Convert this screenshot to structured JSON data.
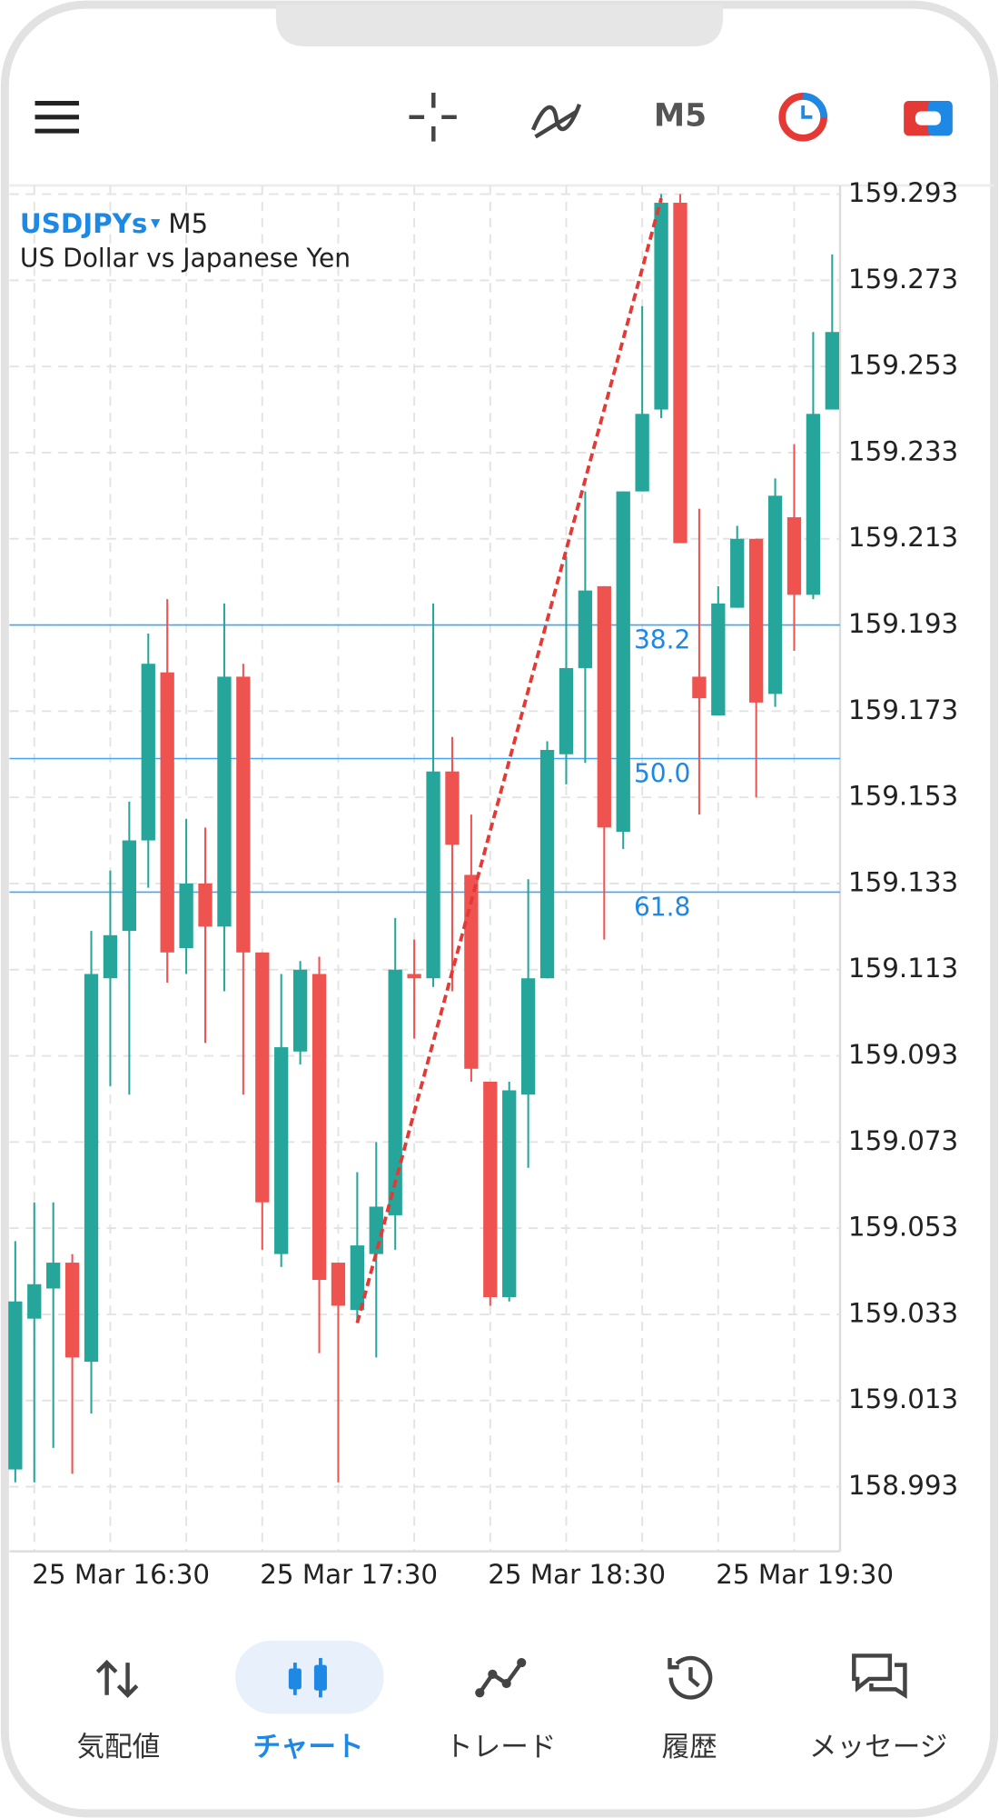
{
  "toolbar": {
    "timeframe": "M5"
  },
  "symbol": {
    "name": "USDJPYs",
    "timeframe": "M5",
    "description": "US Dollar vs Japanese Yen"
  },
  "chart_data": {
    "type": "candlestick",
    "categories": [
      null,
      "25 Mar 16:30",
      null,
      null,
      null,
      null,
      null,
      null,
      null,
      null,
      null,
      null,
      null,
      "25 Mar 17:30",
      null,
      null,
      null,
      null,
      null,
      null,
      null,
      null,
      null,
      null,
      null,
      "25 Mar 18:30",
      null,
      null,
      null,
      null,
      null,
      null,
      null,
      null,
      null,
      null,
      null,
      "25 Mar 19:30",
      null,
      null,
      null,
      null,
      null,
      null
    ],
    "open": [
      158.997,
      159.032,
      159.039,
      159.045,
      159.022,
      159.111,
      159.122,
      159.143,
      159.182,
      159.118,
      159.133,
      159.123,
      159.181,
      159.117,
      159.047,
      159.094,
      159.112,
      159.045,
      159.034,
      159.047,
      159.056,
      159.112,
      159.111,
      159.159,
      159.135,
      159.087,
      159.037,
      159.084,
      159.111,
      159.163,
      159.183,
      159.202,
      159.145,
      159.224,
      159.243,
      159.291,
      159.181,
      159.172,
      159.197,
      159.213,
      159.177,
      159.218,
      159.2,
      159.243
    ],
    "high": [
      159.05,
      159.059,
      159.059,
      159.047,
      159.122,
      159.136,
      159.152,
      159.191,
      159.199,
      159.148,
      159.146,
      159.198,
      159.184,
      159.117,
      159.112,
      159.115,
      159.116,
      159.045,
      159.066,
      159.073,
      159.125,
      159.12,
      159.198,
      159.167,
      159.149,
      159.087,
      159.087,
      159.134,
      159.166,
      159.209,
      159.224,
      159.202,
      159.224,
      159.267,
      159.293,
      159.293,
      159.22,
      159.202,
      159.216,
      159.213,
      159.227,
      159.235,
      159.261,
      159.279
    ],
    "low": [
      158.994,
      158.994,
      159.002,
      158.996,
      159.01,
      159.086,
      159.084,
      159.132,
      159.11,
      159.112,
      159.096,
      159.108,
      159.084,
      159.048,
      159.044,
      159.091,
      159.024,
      158.994,
      159.031,
      159.023,
      159.048,
      159.097,
      159.109,
      159.108,
      159.087,
      159.035,
      159.036,
      159.067,
      159.111,
      159.156,
      159.161,
      159.12,
      159.141,
      159.224,
      159.241,
      159.212,
      159.149,
      159.172,
      159.197,
      159.153,
      159.174,
      159.187,
      159.199,
      159.243
    ],
    "close": [
      159.036,
      159.04,
      159.045,
      159.023,
      159.112,
      159.121,
      159.143,
      159.184,
      159.117,
      159.133,
      159.123,
      159.181,
      159.117,
      159.059,
      159.095,
      159.113,
      159.041,
      159.035,
      159.049,
      159.058,
      159.113,
      159.111,
      159.159,
      159.142,
      159.09,
      159.037,
      159.085,
      159.111,
      159.164,
      159.183,
      159.201,
      159.146,
      159.224,
      159.242,
      159.291,
      159.212,
      159.176,
      159.198,
      159.213,
      159.175,
      159.223,
      159.2,
      159.242,
      159.261
    ],
    "up_color": "#26a69a",
    "down_color": "#ef5350",
    "ylim": [
      158.978,
      159.295
    ],
    "yticks": [
      159.293,
      159.273,
      159.253,
      159.233,
      159.213,
      159.193,
      159.173,
      159.153,
      159.133,
      159.113,
      159.093,
      159.073,
      159.053,
      159.033,
      159.013,
      158.993
    ],
    "grid": true,
    "fib": {
      "levels": [
        38.2,
        {
          "value": 50,
          "label": "50.0"
        },
        61.8
      ],
      "prices": [
        159.193,
        159.162,
        159.131
      ],
      "color": "#42a5f5"
    },
    "trendline": {
      "values": [
        159.031,
        159.292
      ],
      "color": "#e53935"
    }
  },
  "nav": [
    {
      "label": "気配値"
    },
    {
      "label": "チャート"
    },
    {
      "label": "トレード"
    },
    {
      "label": "履歴"
    },
    {
      "label": "メッセージ"
    }
  ]
}
